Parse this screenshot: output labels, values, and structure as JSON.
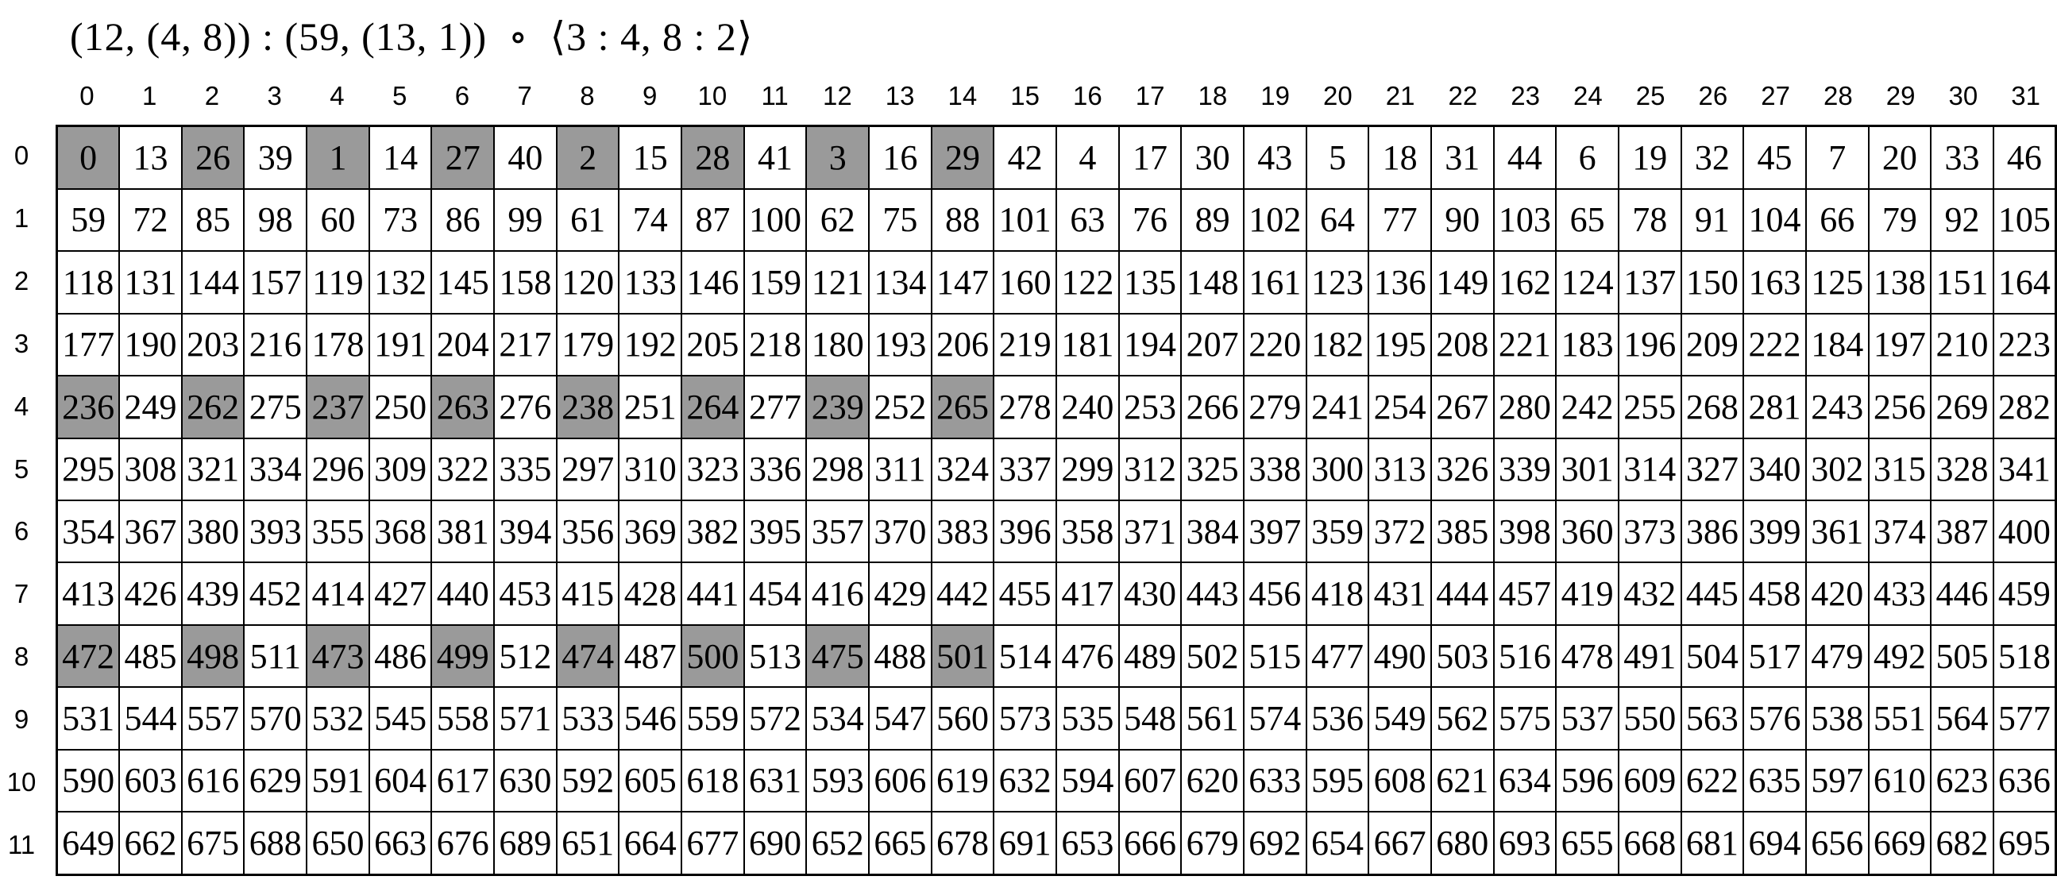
{
  "title": "(12, (4, 8)) : (59, (13, 1))  ∘  ⟨3 : 4, 8 : 2⟩",
  "colors": {
    "shaded_cell": "#9a9a9a",
    "grid_border": "#000000",
    "background": "#ffffff",
    "text": "#000000"
  },
  "grid": {
    "col_headers": [
      "0",
      "1",
      "2",
      "3",
      "4",
      "5",
      "6",
      "7",
      "8",
      "9",
      "10",
      "11",
      "12",
      "13",
      "14",
      "15",
      "16",
      "17",
      "18",
      "19",
      "20",
      "21",
      "22",
      "23",
      "24",
      "25",
      "26",
      "27",
      "28",
      "29",
      "30",
      "31"
    ],
    "row_headers": [
      "0",
      "1",
      "2",
      "3",
      "4",
      "5",
      "6",
      "7",
      "8",
      "9",
      "10",
      "11"
    ],
    "rows": [
      [
        0,
        13,
        26,
        39,
        1,
        14,
        27,
        40,
        2,
        15,
        28,
        41,
        3,
        16,
        29,
        42,
        4,
        17,
        30,
        43,
        5,
        18,
        31,
        44,
        6,
        19,
        32,
        45,
        7,
        20,
        33,
        46
      ],
      [
        59,
        72,
        85,
        98,
        60,
        73,
        86,
        99,
        61,
        74,
        87,
        100,
        62,
        75,
        88,
        101,
        63,
        76,
        89,
        102,
        64,
        77,
        90,
        103,
        65,
        78,
        91,
        104,
        66,
        79,
        92,
        105
      ],
      [
        118,
        131,
        144,
        157,
        119,
        132,
        145,
        158,
        120,
        133,
        146,
        159,
        121,
        134,
        147,
        160,
        122,
        135,
        148,
        161,
        123,
        136,
        149,
        162,
        124,
        137,
        150,
        163,
        125,
        138,
        151,
        164
      ],
      [
        177,
        190,
        203,
        216,
        178,
        191,
        204,
        217,
        179,
        192,
        205,
        218,
        180,
        193,
        206,
        219,
        181,
        194,
        207,
        220,
        182,
        195,
        208,
        221,
        183,
        196,
        209,
        222,
        184,
        197,
        210,
        223
      ],
      [
        236,
        249,
        262,
        275,
        237,
        250,
        263,
        276,
        238,
        251,
        264,
        277,
        239,
        252,
        265,
        278,
        240,
        253,
        266,
        279,
        241,
        254,
        267,
        280,
        242,
        255,
        268,
        281,
        243,
        256,
        269,
        282
      ],
      [
        295,
        308,
        321,
        334,
        296,
        309,
        322,
        335,
        297,
        310,
        323,
        336,
        298,
        311,
        324,
        337,
        299,
        312,
        325,
        338,
        300,
        313,
        326,
        339,
        301,
        314,
        327,
        340,
        302,
        315,
        328,
        341
      ],
      [
        354,
        367,
        380,
        393,
        355,
        368,
        381,
        394,
        356,
        369,
        382,
        395,
        357,
        370,
        383,
        396,
        358,
        371,
        384,
        397,
        359,
        372,
        385,
        398,
        360,
        373,
        386,
        399,
        361,
        374,
        387,
        400
      ],
      [
        413,
        426,
        439,
        452,
        414,
        427,
        440,
        453,
        415,
        428,
        441,
        454,
        416,
        429,
        442,
        455,
        417,
        430,
        443,
        456,
        418,
        431,
        444,
        457,
        419,
        432,
        445,
        458,
        420,
        433,
        446,
        459
      ],
      [
        472,
        485,
        498,
        511,
        473,
        486,
        499,
        512,
        474,
        487,
        500,
        513,
        475,
        488,
        501,
        514,
        476,
        489,
        502,
        515,
        477,
        490,
        503,
        516,
        478,
        491,
        504,
        517,
        479,
        492,
        505,
        518
      ],
      [
        531,
        544,
        557,
        570,
        532,
        545,
        558,
        571,
        533,
        546,
        559,
        572,
        534,
        547,
        560,
        573,
        535,
        548,
        561,
        574,
        536,
        549,
        562,
        575,
        537,
        550,
        563,
        576,
        538,
        551,
        564,
        577
      ],
      [
        590,
        603,
        616,
        629,
        591,
        604,
        617,
        630,
        592,
        605,
        618,
        631,
        593,
        606,
        619,
        632,
        594,
        607,
        620,
        633,
        595,
        608,
        621,
        634,
        596,
        609,
        622,
        635,
        597,
        610,
        623,
        636
      ],
      [
        649,
        662,
        675,
        688,
        650,
        663,
        676,
        689,
        651,
        664,
        677,
        690,
        652,
        665,
        678,
        691,
        653,
        666,
        679,
        692,
        654,
        667,
        680,
        693,
        655,
        668,
        681,
        694,
        656,
        669,
        682,
        695
      ]
    ],
    "shaded_rows": [
      0,
      4,
      8
    ],
    "shaded_cols": [
      0,
      2,
      4,
      6,
      8,
      10,
      12,
      14
    ]
  }
}
